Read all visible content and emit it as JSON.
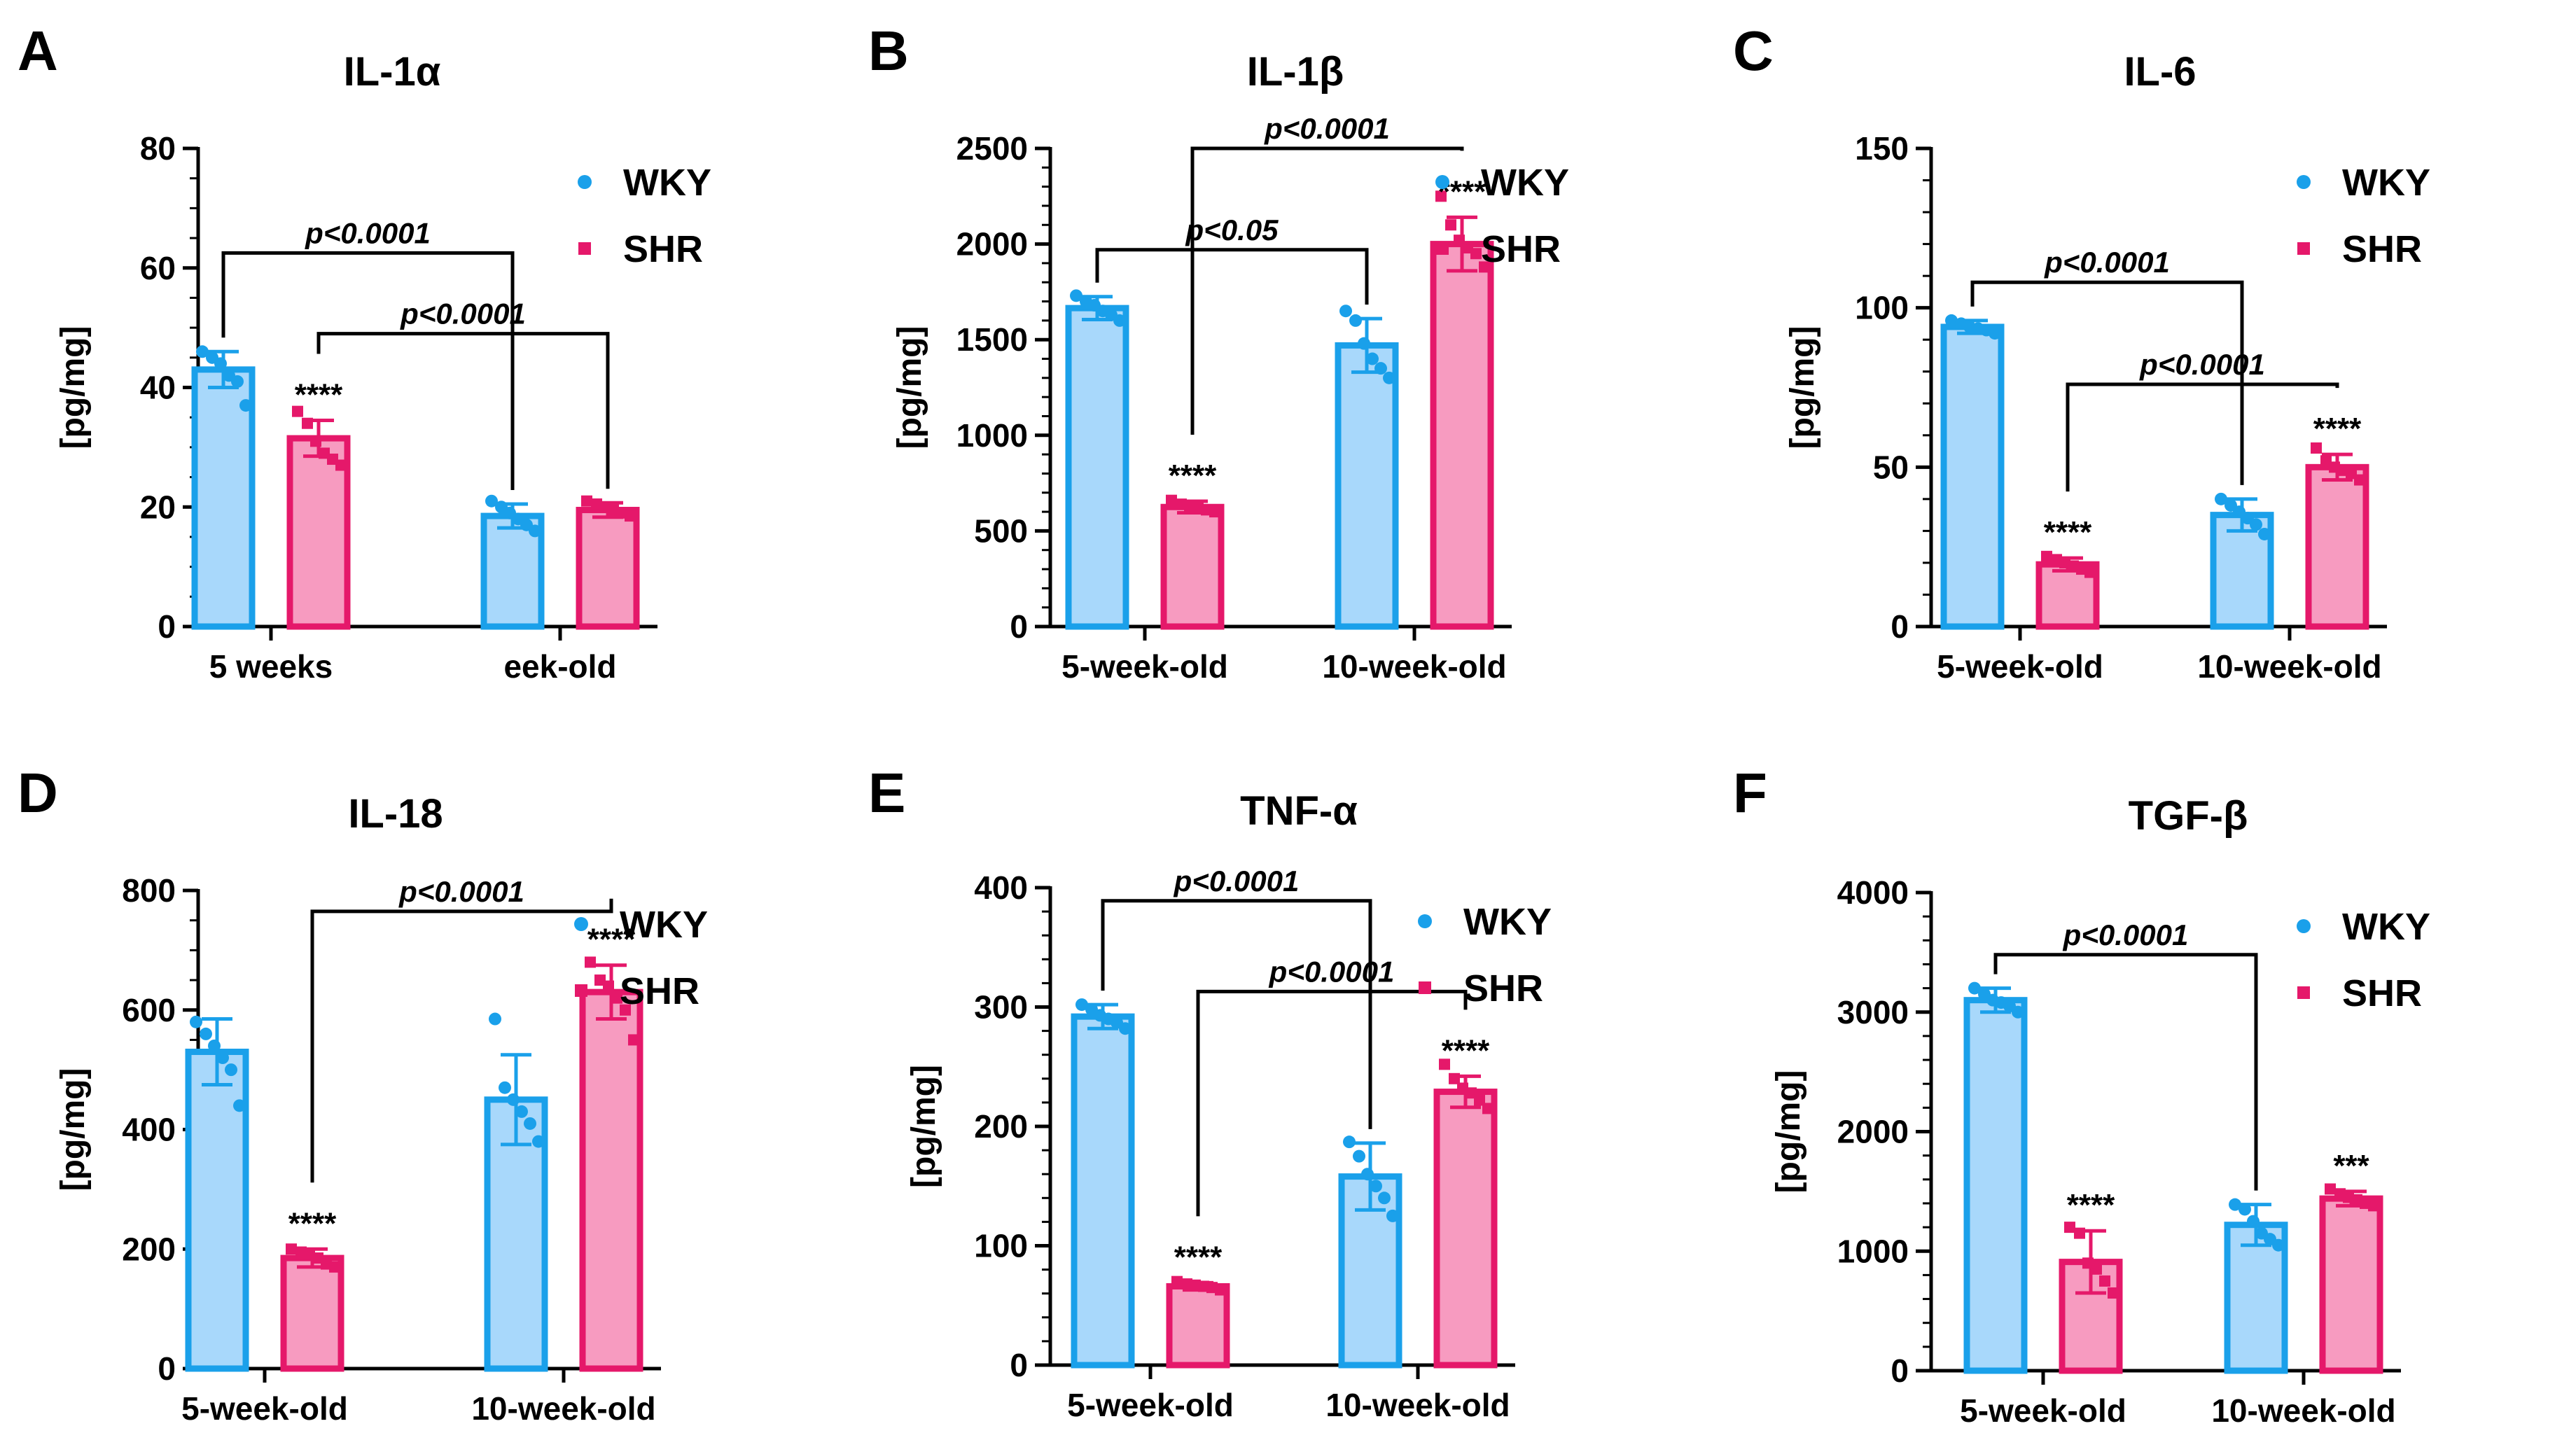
{
  "figure": {
    "legend": {
      "wky": "WKY",
      "shr": "SHR"
    },
    "colors": {
      "wky_fill": "#a8d8fb",
      "wky_stroke": "#1aa0ea",
      "shr_fill": "#f79bc0",
      "shr_stroke": "#e5186a"
    }
  },
  "chart_data": [
    {
      "type": "bar",
      "panel_label": "A",
      "title": "IL-1α",
      "ylabel": "[pg/mg]",
      "categories": [
        "5 weeks",
        "eek-old"
      ],
      "ylim": [
        0,
        80
      ],
      "major_ticks": [
        0,
        20,
        40,
        60,
        80
      ],
      "minor_step": 5,
      "series": [
        {
          "name": "WKY",
          "values": [
            43,
            18.5
          ],
          "errors": [
            3,
            2
          ],
          "points": [
            [
              46,
              45,
              44,
              42,
              41,
              37
            ],
            [
              21,
              20,
              19,
              18,
              17,
              16
            ]
          ]
        },
        {
          "name": "SHR",
          "values": [
            31.5,
            19.5
          ],
          "errors": [
            3,
            1.2
          ],
          "points": [
            [
              36,
              34,
              31,
              29,
              28,
              27
            ],
            [
              21,
              20.5,
              20,
              19.5,
              19,
              18.5
            ]
          ]
        }
      ],
      "stars": [
        "",
        "****",
        "",
        ""
      ],
      "comparisons": [
        {
          "from": [
            0,
            0
          ],
          "to": [
            1,
            0
          ],
          "label": "p<0.0001",
          "y": 62.5
        },
        {
          "from": [
            0,
            1
          ],
          "to": [
            1,
            1
          ],
          "label": "p<0.0001",
          "y": 49
        }
      ]
    },
    {
      "type": "bar",
      "panel_label": "B",
      "title": "IL-1β",
      "ylabel": "[pg/mg]",
      "categories": [
        "5-week-old",
        "10-week-old"
      ],
      "ylim": [
        0,
        2500
      ],
      "major_ticks": [
        0,
        500,
        1000,
        1500,
        2000,
        2500
      ],
      "minor_step": 100,
      "series": [
        {
          "name": "WKY",
          "values": [
            1665,
            1470
          ],
          "errors": [
            60,
            140
          ],
          "points": [
            [
              1730,
              1700,
              1680,
              1650,
              1630,
              1600
            ],
            [
              1650,
              1600,
              1480,
              1400,
              1350,
              1300
            ]
          ]
        },
        {
          "name": "SHR",
          "values": [
            625,
            2000
          ],
          "errors": [
            30,
            140
          ],
          "points": [
            [
              660,
              640,
              630,
              620,
              610,
              600
            ],
            [
              2250,
              2100,
              2020,
              1980,
              1950,
              1880
            ]
          ]
        }
      ],
      "stars": [
        "",
        "****",
        "",
        "****"
      ],
      "comparisons": [
        {
          "from": [
            0,
            0
          ],
          "to": [
            1,
            0
          ],
          "label": "p<0.05",
          "y": 1970
        },
        {
          "from": [
            0,
            1
          ],
          "to": [
            1,
            1
          ],
          "label": "p<0.0001",
          "y": 2500
        }
      ]
    },
    {
      "type": "bar",
      "panel_label": "C",
      "title": "IL-6",
      "ylabel": "[pg/mg]",
      "categories": [
        "5-week-old",
        "10-week-old"
      ],
      "ylim": [
        0,
        150
      ],
      "major_ticks": [
        0,
        50,
        100,
        150
      ],
      "minor_step": 10,
      "series": [
        {
          "name": "WKY",
          "values": [
            94,
            35
          ],
          "errors": [
            2,
            5
          ],
          "points": [
            [
              96,
              95,
              94,
              93.5,
              93,
              92
            ],
            [
              40,
              38,
              36,
              34,
              32,
              29
            ]
          ]
        },
        {
          "name": "SHR",
          "values": [
            19.5,
            50
          ],
          "errors": [
            2,
            4
          ],
          "points": [
            [
              22,
              21,
              20,
              19,
              18,
              17
            ],
            [
              56,
              52,
              50,
              49,
              48,
              46
            ]
          ]
        }
      ],
      "stars": [
        "",
        "****",
        "",
        "****"
      ],
      "comparisons": [
        {
          "from": [
            0,
            0
          ],
          "to": [
            1,
            0
          ],
          "label": "p<0.0001",
          "y": 108
        },
        {
          "from": [
            0,
            1
          ],
          "to": [
            1,
            1
          ],
          "label": "p<0.0001",
          "y": 76
        }
      ]
    },
    {
      "type": "bar",
      "panel_label": "D",
      "title": "IL-18",
      "ylabel": "[pg/mg]",
      "categories": [
        "5-week-old",
        "10-week-old"
      ],
      "ylim": [
        0,
        800
      ],
      "major_ticks": [
        0,
        200,
        400,
        600,
        800
      ],
      "minor_step": 50,
      "series": [
        {
          "name": "WKY",
          "values": [
            530,
            450
          ],
          "errors": [
            55,
            75
          ],
          "points": [
            [
              580,
              560,
              540,
              520,
              500,
              440
            ],
            [
              585,
              470,
              450,
              430,
              410,
              380
            ]
          ]
        },
        {
          "name": "SHR",
          "values": [
            185,
            630
          ],
          "errors": [
            15,
            45
          ],
          "points": [
            [
              200,
              195,
              190,
              185,
              175,
              170
            ],
            [
              680,
              650,
              640,
              620,
              600,
              550
            ]
          ]
        }
      ],
      "stars": [
        "",
        "****",
        "",
        "****"
      ],
      "comparisons": [
        {
          "from": [
            0,
            1
          ],
          "to": [
            1,
            1
          ],
          "label": "p<0.0001",
          "y": 765
        }
      ]
    },
    {
      "type": "bar",
      "panel_label": "E",
      "title": "TNF-α",
      "ylabel": "[pg/mg]",
      "categories": [
        "5-week-old",
        "10-week-old"
      ],
      "ylim": [
        0,
        400
      ],
      "major_ticks": [
        0,
        100,
        200,
        300,
        400
      ],
      "minor_step": 20,
      "series": [
        {
          "name": "WKY",
          "values": [
            292,
            158
          ],
          "errors": [
            10,
            28
          ],
          "points": [
            [
              302,
              298,
              293,
              290,
              287,
              282
            ],
            [
              187,
              175,
              160,
              150,
              140,
              125
            ]
          ]
        },
        {
          "name": "SHR",
          "values": [
            66,
            229
          ],
          "errors": [
            3,
            13
          ],
          "points": [
            [
              70,
              68,
              67,
              66,
              65,
              63
            ],
            [
              252,
              240,
              232,
              228,
              222,
              215
            ]
          ]
        }
      ],
      "stars": [
        "",
        "****",
        "",
        "****"
      ],
      "comparisons": [
        {
          "from": [
            0,
            0
          ],
          "to": [
            1,
            0
          ],
          "label": "p<0.0001",
          "y": 389
        },
        {
          "from": [
            0,
            1
          ],
          "to": [
            1,
            1
          ],
          "label": "p<0.0001",
          "y": 313
        }
      ]
    },
    {
      "type": "bar",
      "panel_label": "F",
      "title": "TGF-β",
      "ylabel": "[pg/mg]",
      "categories": [
        "5-week-old",
        "10-week-old"
      ],
      "ylim": [
        0,
        4000
      ],
      "major_ticks": [
        0,
        1000,
        2000,
        3000,
        4000
      ],
      "minor_step": 200,
      "series": [
        {
          "name": "WKY",
          "values": [
            3100,
            1220
          ],
          "errors": [
            100,
            170
          ],
          "points": [
            [
              3200,
              3150,
              3100,
              3080,
              3050,
              3000
            ],
            [
              1390,
              1350,
              1250,
              1150,
              1100,
              1050
            ]
          ]
        },
        {
          "name": "SHR",
          "values": [
            910,
            1440
          ],
          "errors": [
            260,
            60
          ],
          "points": [
            [
              1200,
              1150,
              900,
              850,
              750,
              650
            ],
            [
              1520,
              1480,
              1450,
              1430,
              1400,
              1380
            ]
          ]
        }
      ],
      "stars": [
        "",
        "****",
        "",
        "***"
      ],
      "comparisons": [
        {
          "from": [
            0,
            0
          ],
          "to": [
            1,
            0
          ],
          "label": "p<0.0001",
          "y": 3480
        }
      ]
    }
  ]
}
